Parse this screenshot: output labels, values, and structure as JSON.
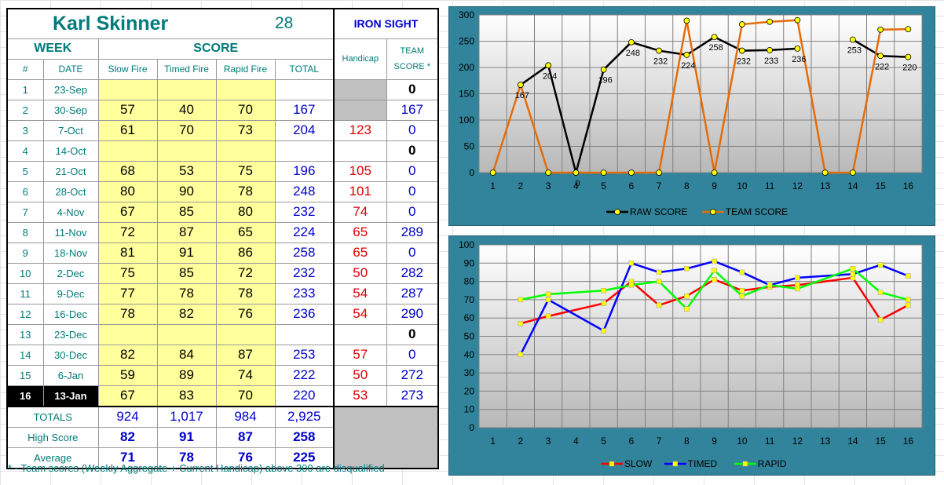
{
  "header": {
    "name": "Karl Skinner",
    "number": "28",
    "team": "IRON SIGHT"
  },
  "cols": {
    "week": "WEEK",
    "score": "SCORE",
    "num": "#",
    "date": "DATE",
    "slow": "Slow Fire",
    "timed": "Timed Fire",
    "rapid": "Rapid Fire",
    "total": "TOTAL",
    "handicap": "Handicap",
    "team_score": "TEAM SCORE *"
  },
  "rows": [
    {
      "num": "1",
      "date": "23-Sep",
      "slow": "",
      "timed": "",
      "rapid": "",
      "total": "",
      "handicap": "",
      "team": "0",
      "hgray": true
    },
    {
      "num": "2",
      "date": "30-Sep",
      "slow": "57",
      "timed": "40",
      "rapid": "70",
      "total": "167",
      "handicap": "",
      "team": "167",
      "hgray": true
    },
    {
      "num": "3",
      "date": "7-Oct",
      "slow": "61",
      "timed": "70",
      "rapid": "73",
      "total": "204",
      "handicap": "123",
      "team": "0"
    },
    {
      "num": "4",
      "date": "14-Oct",
      "slow": "",
      "timed": "",
      "rapid": "",
      "total": "",
      "handicap": "",
      "team": "0"
    },
    {
      "num": "5",
      "date": "21-Oct",
      "slow": "68",
      "timed": "53",
      "rapid": "75",
      "total": "196",
      "handicap": "105",
      "team": "0"
    },
    {
      "num": "6",
      "date": "28-Oct",
      "slow": "80",
      "timed": "90",
      "rapid": "78",
      "total": "248",
      "handicap": "101",
      "team": "0"
    },
    {
      "num": "7",
      "date": "4-Nov",
      "slow": "67",
      "timed": "85",
      "rapid": "80",
      "total": "232",
      "handicap": "74",
      "team": "0"
    },
    {
      "num": "8",
      "date": "11-Nov",
      "slow": "72",
      "timed": "87",
      "rapid": "65",
      "total": "224",
      "handicap": "65",
      "team": "289"
    },
    {
      "num": "9",
      "date": "18-Nov",
      "slow": "81",
      "timed": "91",
      "rapid": "86",
      "total": "258",
      "handicap": "65",
      "team": "0"
    },
    {
      "num": "10",
      "date": "2-Dec",
      "slow": "75",
      "timed": "85",
      "rapid": "72",
      "total": "232",
      "handicap": "50",
      "team": "282"
    },
    {
      "num": "11",
      "date": "9-Dec",
      "slow": "77",
      "timed": "78",
      "rapid": "78",
      "total": "233",
      "handicap": "54",
      "team": "287"
    },
    {
      "num": "12",
      "date": "16-Dec",
      "slow": "78",
      "timed": "82",
      "rapid": "76",
      "total": "236",
      "handicap": "54",
      "team": "290"
    },
    {
      "num": "13",
      "date": "23-Dec",
      "slow": "",
      "timed": "",
      "rapid": "",
      "total": "",
      "handicap": "",
      "team": "0"
    },
    {
      "num": "14",
      "date": "30-Dec",
      "slow": "82",
      "timed": "84",
      "rapid": "87",
      "total": "253",
      "handicap": "57",
      "team": "0"
    },
    {
      "num": "15",
      "date": "6-Jan",
      "slow": "59",
      "timed": "89",
      "rapid": "74",
      "total": "222",
      "handicap": "50",
      "team": "272"
    },
    {
      "num": "16",
      "date": "13-Jan",
      "slow": "67",
      "timed": "83",
      "rapid": "70",
      "total": "220",
      "handicap": "53",
      "team": "273",
      "selected": true
    }
  ],
  "summary": [
    {
      "label": "TOTALS",
      "slow": "924",
      "timed": "1,017",
      "rapid": "984",
      "total": "2,925"
    },
    {
      "label": "High Score",
      "slow": "82",
      "timed": "91",
      "rapid": "87",
      "total": "258"
    },
    {
      "label": "Average",
      "slow": "71",
      "timed": "78",
      "rapid": "76",
      "total": "225"
    }
  ],
  "footnote": "* - Team scores (Weekly Aggregate + Current Handicap) above 300 are disqualified",
  "colors": {
    "chart_bg": "#31849b",
    "raw": "#000000",
    "team": "#e46c0a",
    "slow": "#ff0000",
    "timed": "#0000ff",
    "rapid": "#00ff00",
    "marker_yellow": "#ffff00"
  },
  "chart_data": [
    {
      "type": "line",
      "x": [
        1,
        2,
        3,
        4,
        5,
        6,
        7,
        8,
        9,
        10,
        11,
        12,
        13,
        14,
        15,
        16
      ],
      "ylim": [
        0,
        300
      ],
      "yticks": [
        0,
        50,
        100,
        150,
        200,
        250,
        300
      ],
      "grid": true,
      "legend": "bottom",
      "series": [
        {
          "name": "RAW SCORE",
          "color": "#000000",
          "segments": [
            [
              [
                2,
                167
              ],
              [
                3,
                204
              ],
              [
                4,
                0
              ],
              [
                5,
                196
              ],
              [
                6,
                248
              ],
              [
                7,
                232
              ],
              [
                8,
                224
              ],
              [
                9,
                258
              ],
              [
                10,
                232
              ],
              [
                11,
                233
              ],
              [
                12,
                236
              ]
            ],
            [
              [
                14,
                253
              ],
              [
                15,
                222
              ],
              [
                16,
                220
              ]
            ]
          ]
        },
        {
          "name": "TEAM SCORE",
          "color": "#e46c0a",
          "segments": [
            [
              [
                1,
                0
              ],
              [
                2,
                167
              ],
              [
                3,
                0
              ],
              [
                4,
                0
              ],
              [
                5,
                0
              ],
              [
                6,
                0
              ],
              [
                7,
                0
              ],
              [
                8,
                289
              ],
              [
                9,
                0
              ],
              [
                10,
                282
              ],
              [
                11,
                287
              ],
              [
                12,
                290
              ],
              [
                13,
                0
              ],
              [
                14,
                0
              ],
              [
                15,
                272
              ],
              [
                16,
                273
              ]
            ]
          ]
        }
      ],
      "data_labels": [
        {
          "x": 2,
          "y": 167,
          "text": "167"
        },
        {
          "x": 3,
          "y": 204,
          "text": "204"
        },
        {
          "x": 4,
          "y": 0,
          "text": "0"
        },
        {
          "x": 5,
          "y": 196,
          "text": "196"
        },
        {
          "x": 6,
          "y": 248,
          "text": "248"
        },
        {
          "x": 7,
          "y": 232,
          "text": "232"
        },
        {
          "x": 8,
          "y": 224,
          "text": "224"
        },
        {
          "x": 9,
          "y": 258,
          "text": "258"
        },
        {
          "x": 10,
          "y": 232,
          "text": "232"
        },
        {
          "x": 11,
          "y": 233,
          "text": "233"
        },
        {
          "x": 12,
          "y": 236,
          "text": "236"
        },
        {
          "x": 14,
          "y": 253,
          "text": "253"
        },
        {
          "x": 15,
          "y": 222,
          "text": "222"
        },
        {
          "x": 16,
          "y": 220,
          "text": "220"
        }
      ]
    },
    {
      "type": "line",
      "x": [
        1,
        2,
        3,
        4,
        5,
        6,
        7,
        8,
        9,
        10,
        11,
        12,
        13,
        14,
        15,
        16
      ],
      "ylim": [
        0,
        100
      ],
      "yticks": [
        0,
        10,
        20,
        30,
        40,
        50,
        60,
        70,
        80,
        90,
        100
      ],
      "grid": true,
      "legend": "bottom",
      "series": [
        {
          "name": "SLOW",
          "color": "#ff0000",
          "segments": [
            [
              [
                2,
                57
              ],
              [
                3,
                61
              ],
              [
                5,
                68
              ],
              [
                6,
                80
              ],
              [
                7,
                67
              ],
              [
                8,
                72
              ],
              [
                9,
                81
              ],
              [
                10,
                75
              ],
              [
                11,
                77
              ],
              [
                12,
                78
              ],
              [
                14,
                82
              ],
              [
                15,
                59
              ],
              [
                16,
                67
              ]
            ]
          ]
        },
        {
          "name": "TIMED",
          "color": "#0000ff",
          "segments": [
            [
              [
                2,
                40
              ],
              [
                3,
                70
              ],
              [
                5,
                53
              ],
              [
                6,
                90
              ],
              [
                7,
                85
              ],
              [
                8,
                87
              ],
              [
                9,
                91
              ],
              [
                10,
                85
              ],
              [
                11,
                78
              ],
              [
                12,
                82
              ],
              [
                14,
                84
              ],
              [
                15,
                89
              ],
              [
                16,
                83
              ]
            ]
          ]
        },
        {
          "name": "RAPID",
          "color": "#00ff00",
          "segments": [
            [
              [
                2,
                70
              ],
              [
                3,
                73
              ],
              [
                5,
                75
              ],
              [
                6,
                78
              ],
              [
                7,
                80
              ],
              [
                8,
                65
              ],
              [
                9,
                86
              ],
              [
                10,
                72
              ],
              [
                11,
                78
              ],
              [
                12,
                76
              ],
              [
                14,
                87
              ],
              [
                15,
                74
              ],
              [
                16,
                70
              ]
            ]
          ]
        }
      ]
    }
  ]
}
